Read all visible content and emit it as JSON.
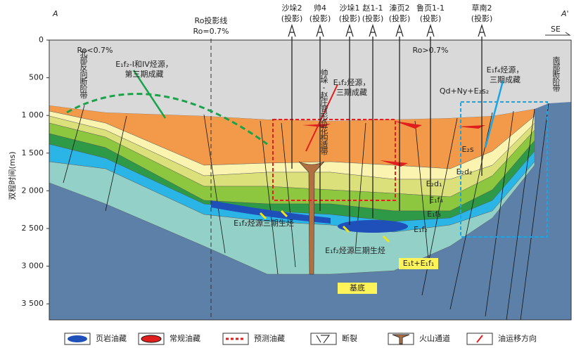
{
  "header": {
    "left_end": "A",
    "right_end": "A'",
    "direction": "SE",
    "ro_line": "Ro投影线",
    "ro_value": "Ro=0.7%",
    "ro_low": "Ro<0.7%",
    "ro_high": "Ro>0.7%"
  },
  "wells": [
    {
      "name": "沙垛2",
      "note": "(投影)"
    },
    {
      "name": "帅4",
      "note": "(投影)"
    },
    {
      "name": "沙垛1",
      "note": "(投影)"
    },
    {
      "name": "赵1-1",
      "note": "(投影)"
    },
    {
      "name": "溱页2",
      "note": "(投影)"
    },
    {
      "name": "鲁页1-1",
      "note": "(投影)"
    },
    {
      "name": "草南2",
      "note": "(投影)"
    }
  ],
  "axis": {
    "label": "双程时间(ms)",
    "ticks": [
      0,
      500,
      {
        "value": 1000,
        "label": "1 000"
      },
      {
        "value": 1500,
        "label": "1 500"
      },
      {
        "value": 2000,
        "label": "2 000"
      },
      {
        "value": 2500,
        "label": "2 500"
      },
      {
        "value": 3000,
        "label": "3 000"
      },
      {
        "value": 3500,
        "label": "3 500"
      }
    ]
  },
  "annotations": [
    "北部反向断阶带",
    "E₁f₂-I和IV烃源，",
    "第三期成藏",
    "帅垛-赵庄背形负花构造带",
    "E₁f₂烃源，",
    "三期成藏",
    "Qd+Ny+E₂s₂",
    "E₁f₄烃源，",
    "三期成藏",
    "南部断阶带",
    "E₂s",
    "E₂d₂",
    "E₂d₁",
    "E₁f₄",
    "E₁f₃",
    "E₁f₂",
    "E₁f₂烃源三期生烃",
    "E₁f₂烃源三期生烃",
    "E₁t+E₁f₁",
    "基底"
  ],
  "legend": [
    "页岩油藏",
    "常规油藏",
    "预测油藏",
    "断裂",
    "火山通道",
    "油运移方向"
  ]
}
